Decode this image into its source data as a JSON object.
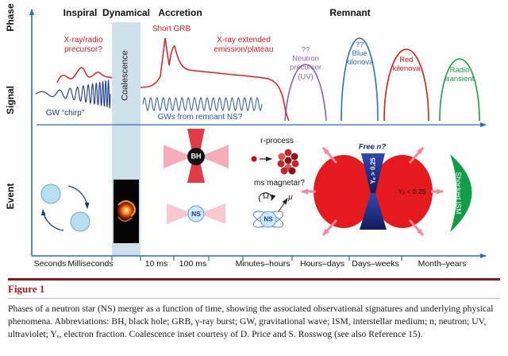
{
  "figure": {
    "label": "Figure 1",
    "caption": "Phases of a neutron star (NS) merger as a function of time, showing the associated observational signatures and underlying physical phenomena. Abbreviations: BH, black hole; GRB, γ-ray burst; GW, gravitational wave; ISM, interstellar medium; n, neutron; UV, ultraviolet; Yₑ, electron fraction. Coalescence inset courtesy of D. Price and S. Rosswog (see also Reference 15)."
  },
  "axes": {
    "phase": "Phase",
    "signal": "Signal",
    "event": "Event"
  },
  "phases": {
    "inspiral": "Inspiral",
    "dynamical": "Dynamical",
    "accretion": "Accretion",
    "remnant": "Remnant"
  },
  "signal": {
    "precursor_line1": "X-ray/radio",
    "precursor_line2": "precursor?",
    "short_grb": "Short GRB",
    "extended_line1": "X-ray extended",
    "extended_line2": "emission/plateau",
    "gw_chirp": "GW “chirp”",
    "coalescence": "Coalescence",
    "gw_remnant": "GWs from remnant NS?",
    "neutron_precursor": {
      "qq": "??",
      "line1": "Neutron",
      "line2": "precursor",
      "line3": "(UV)"
    },
    "blue_kilonova": {
      "qq": "??",
      "line1": "Blue",
      "line2": "kilonova"
    },
    "red_kilonova": {
      "line1": "Red",
      "line2": "kilonova"
    },
    "radio_transient": {
      "line1": "Radio",
      "line2": "transient"
    }
  },
  "event": {
    "bh": "BH",
    "ns_disk": "NS",
    "r_process": "r-process",
    "ms_magnetar": "ms magnetar?",
    "omega": "Ω",
    "mu": "μ",
    "ns_magnetar": "NS",
    "free_n": "Free n?",
    "ye_high": "Yₑ > 0.25",
    "ye_low": "Yₑ < 0.25",
    "shocked_ism": "Shocked ISM"
  },
  "timeline": [
    "Seconds",
    "Milliseconds",
    "10 ms",
    "100 ms",
    "Minutes–hours",
    "Hours–days",
    "Days–weeks",
    "Month–years"
  ],
  "colors": {
    "signal_red": "#e01e24",
    "gw_navy": "#1b3a8c",
    "axis_blue": "#2a6db5",
    "precursor_purple": "#8b5fb5",
    "kilonova_blue": "#2f6fc4",
    "kilonova_red": "#d61f1f",
    "transient_green": "#1f9d44",
    "ejecta_red": "#e51a1c",
    "ism_green": "#0f9d45",
    "figure_maroon": "#8c1a1a"
  }
}
